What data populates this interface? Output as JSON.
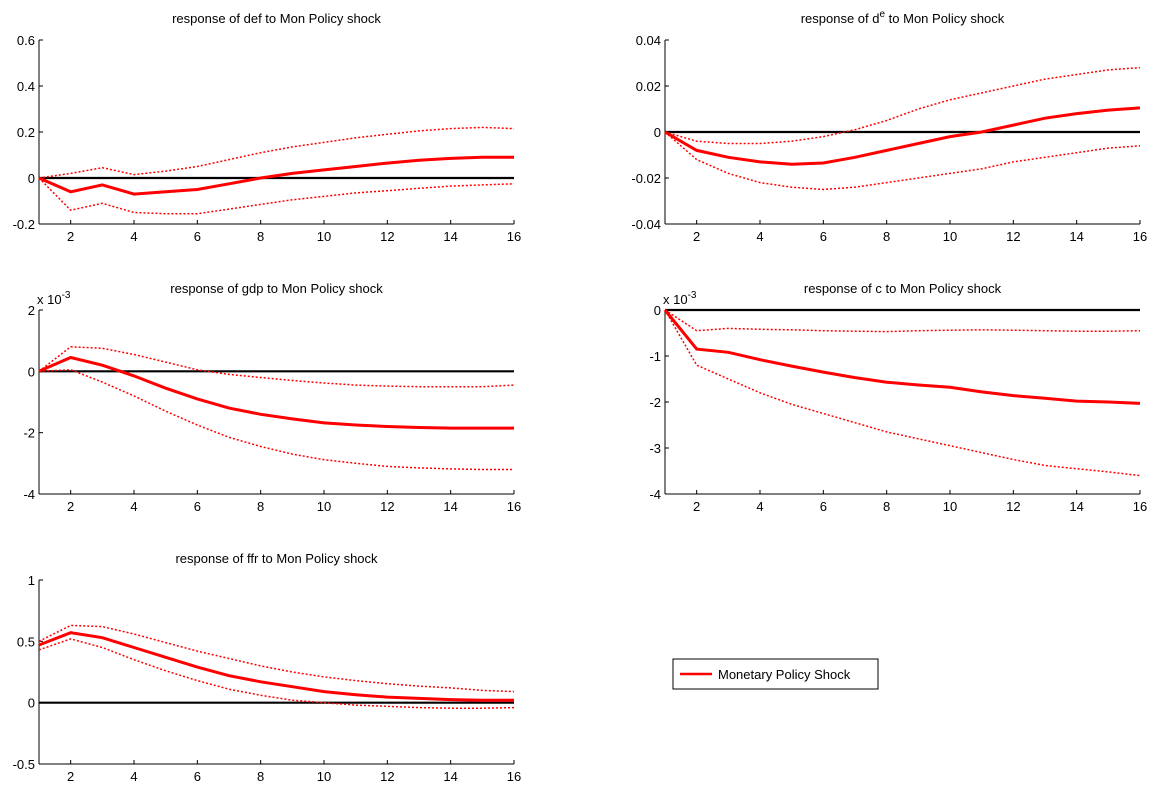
{
  "colors": {
    "response": "#ff0000",
    "zero_line": "#000000",
    "axis": "#000000",
    "background": "#ffffff"
  },
  "legend": {
    "label": "Monetary Policy Shock",
    "placement": "center-right"
  },
  "chart_data": [
    {
      "type": "line",
      "title": "response of def to Mon Policy shock",
      "title_sup": "",
      "title_suffix": "",
      "exponent": "",
      "x": [
        1,
        2,
        3,
        4,
        5,
        6,
        7,
        8,
        9,
        10,
        11,
        12,
        13,
        14,
        15,
        16
      ],
      "xlim": [
        1,
        16
      ],
      "ylim": [
        -0.2,
        0.6
      ],
      "xticks": [
        2,
        4,
        6,
        8,
        10,
        12,
        14,
        16
      ],
      "yticks": [
        -0.2,
        0,
        0.2,
        0.4,
        0.6
      ],
      "ytick_labels": [
        "-0.2",
        "0",
        "0.2",
        "0.4",
        "0.6"
      ],
      "series": [
        {
          "values": [
            0,
            -0.06,
            -0.03,
            -0.07,
            -0.06,
            -0.05,
            -0.025,
            0,
            0.02,
            0.035,
            0.05,
            0.065,
            0.077,
            0.085,
            0.09,
            0.09
          ]
        },
        {
          "values": [
            0,
            0.02,
            0.045,
            0.015,
            0.03,
            0.05,
            0.08,
            0.11,
            0.135,
            0.155,
            0.175,
            0.19,
            0.205,
            0.215,
            0.22,
            0.215
          ]
        },
        {
          "values": [
            0,
            -0.14,
            -0.11,
            -0.15,
            -0.155,
            -0.155,
            -0.135,
            -0.115,
            -0.095,
            -0.08,
            -0.065,
            -0.055,
            -0.045,
            -0.035,
            -0.03,
            -0.025
          ]
        }
      ]
    },
    {
      "type": "line",
      "title": "response of d",
      "title_sup": "e",
      "title_suffix": " to Mon Policy shock",
      "exponent": "",
      "x": [
        1,
        2,
        3,
        4,
        5,
        6,
        7,
        8,
        9,
        10,
        11,
        12,
        13,
        14,
        15,
        16
      ],
      "xlim": [
        1,
        16
      ],
      "ylim": [
        -0.04,
        0.04
      ],
      "xticks": [
        2,
        4,
        6,
        8,
        10,
        12,
        14,
        16
      ],
      "yticks": [
        -0.04,
        -0.02,
        0,
        0.02,
        0.04
      ],
      "ytick_labels": [
        "-0.04",
        "-0.02",
        "0",
        "0.02",
        "0.04"
      ],
      "series": [
        {
          "values": [
            0,
            -0.008,
            -0.011,
            -0.013,
            -0.014,
            -0.0135,
            -0.011,
            -0.008,
            -0.005,
            -0.002,
            0,
            0.003,
            0.006,
            0.008,
            0.0095,
            0.0105
          ]
        },
        {
          "values": [
            0,
            -0.004,
            -0.005,
            -0.005,
            -0.004,
            -0.002,
            0.001,
            0.005,
            0.01,
            0.014,
            0.017,
            0.02,
            0.023,
            0.025,
            0.027,
            0.028
          ]
        },
        {
          "values": [
            0,
            -0.012,
            -0.018,
            -0.022,
            -0.024,
            -0.025,
            -0.024,
            -0.022,
            -0.02,
            -0.018,
            -0.016,
            -0.013,
            -0.011,
            -0.009,
            -0.007,
            -0.006
          ]
        }
      ]
    },
    {
      "type": "line",
      "title": "response of gdp to Mon Policy shock",
      "title_sup": "",
      "title_suffix": "",
      "exponent": "-3",
      "x": [
        1,
        2,
        3,
        4,
        5,
        6,
        7,
        8,
        9,
        10,
        11,
        12,
        13,
        14,
        15,
        16
      ],
      "xlim": [
        1,
        16
      ],
      "ylim": [
        -4,
        2
      ],
      "xticks": [
        2,
        4,
        6,
        8,
        10,
        12,
        14,
        16
      ],
      "yticks": [
        -4,
        -2,
        0,
        2
      ],
      "ytick_labels": [
        "-4",
        "-2",
        "0",
        "2"
      ],
      "series": [
        {
          "values": [
            0,
            0.45,
            0.2,
            -0.15,
            -0.55,
            -0.9,
            -1.2,
            -1.4,
            -1.55,
            -1.68,
            -1.75,
            -1.8,
            -1.83,
            -1.85,
            -1.85,
            -1.85
          ]
        },
        {
          "values": [
            0,
            0.8,
            0.75,
            0.55,
            0.3,
            0.05,
            -0.1,
            -0.2,
            -0.3,
            -0.38,
            -0.45,
            -0.48,
            -0.5,
            -0.5,
            -0.5,
            -0.45
          ]
        },
        {
          "values": [
            0,
            0.05,
            -0.35,
            -0.8,
            -1.3,
            -1.75,
            -2.15,
            -2.45,
            -2.7,
            -2.88,
            -3.0,
            -3.1,
            -3.15,
            -3.18,
            -3.2,
            -3.2
          ]
        }
      ]
    },
    {
      "type": "line",
      "title": "response of c to Mon Policy shock",
      "title_sup": "",
      "title_suffix": "",
      "exponent": "-3",
      "x": [
        1,
        2,
        3,
        4,
        5,
        6,
        7,
        8,
        9,
        10,
        11,
        12,
        13,
        14,
        15,
        16
      ],
      "xlim": [
        1,
        16
      ],
      "ylim": [
        -4,
        0
      ],
      "xticks": [
        2,
        4,
        6,
        8,
        10,
        12,
        14,
        16
      ],
      "yticks": [
        -4,
        -3,
        -2,
        -1,
        0
      ],
      "ytick_labels": [
        "-4",
        "-3",
        "-2",
        "-1",
        "0"
      ],
      "series": [
        {
          "values": [
            0,
            -0.85,
            -0.92,
            -1.08,
            -1.22,
            -1.35,
            -1.47,
            -1.57,
            -1.63,
            -1.68,
            -1.78,
            -1.86,
            -1.92,
            -1.98,
            -2.0,
            -2.03
          ]
        },
        {
          "values": [
            0,
            -0.45,
            -0.4,
            -0.42,
            -0.43,
            -0.45,
            -0.46,
            -0.47,
            -0.45,
            -0.44,
            -0.43,
            -0.44,
            -0.45,
            -0.46,
            -0.46,
            -0.45
          ]
        },
        {
          "values": [
            0,
            -1.2,
            -1.5,
            -1.8,
            -2.05,
            -2.25,
            -2.45,
            -2.65,
            -2.8,
            -2.95,
            -3.1,
            -3.25,
            -3.38,
            -3.45,
            -3.52,
            -3.6
          ]
        }
      ]
    },
    {
      "type": "line",
      "title": "response of ffr to Mon Policy shock",
      "title_sup": "",
      "title_suffix": "",
      "exponent": "",
      "x": [
        1,
        2,
        3,
        4,
        5,
        6,
        7,
        8,
        9,
        10,
        11,
        12,
        13,
        14,
        15,
        16
      ],
      "xlim": [
        1,
        16
      ],
      "ylim": [
        -0.5,
        1
      ],
      "xticks": [
        2,
        4,
        6,
        8,
        10,
        12,
        14,
        16
      ],
      "yticks": [
        -0.5,
        0,
        0.5,
        1
      ],
      "ytick_labels": [
        "-0.5",
        "0",
        "0.5",
        "1"
      ],
      "series": [
        {
          "values": [
            0.47,
            0.57,
            0.53,
            0.45,
            0.37,
            0.29,
            0.22,
            0.17,
            0.13,
            0.09,
            0.065,
            0.045,
            0.035,
            0.025,
            0.02,
            0.02
          ]
        },
        {
          "values": [
            0.5,
            0.63,
            0.62,
            0.56,
            0.49,
            0.42,
            0.36,
            0.3,
            0.25,
            0.21,
            0.18,
            0.155,
            0.135,
            0.12,
            0.1,
            0.09
          ]
        },
        {
          "values": [
            0.43,
            0.52,
            0.45,
            0.35,
            0.26,
            0.18,
            0.11,
            0.06,
            0.02,
            0,
            -0.02,
            -0.03,
            -0.04,
            -0.045,
            -0.045,
            -0.04
          ]
        }
      ]
    }
  ]
}
